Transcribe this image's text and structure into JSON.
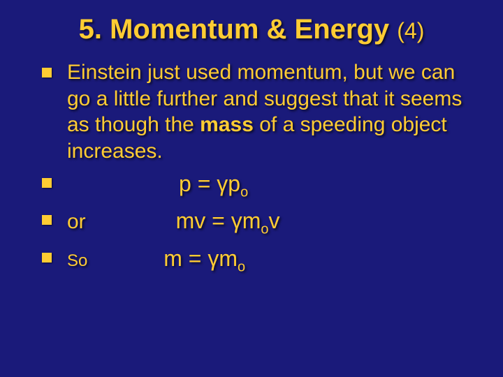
{
  "colors": {
    "background": "#1a1a7a",
    "text": "#ffcc33",
    "bullet": "#ffcc33"
  },
  "typography": {
    "title_fontsize": 40,
    "body_fontsize": 30,
    "equation_fontsize": 32,
    "subscript_fontsize": 20,
    "font_family": "Arial"
  },
  "title": {
    "main": "5. Momentum & Energy",
    "suffix": "(4)"
  },
  "bullets": [
    {
      "type": "text",
      "parts": {
        "a": "Einstein just used momentum, but we can go a little further and suggest that it seems as though the ",
        "b": "mass",
        "c": " of a speeding object increases."
      }
    },
    {
      "type": "equation",
      "prefix": "",
      "eq": {
        "lhs": "p = γp",
        "sub": "o",
        "rhs": ""
      }
    },
    {
      "type": "equation",
      "prefix": "or",
      "eq": {
        "lhs": "mv = γm",
        "sub": "o",
        "rhs": "v"
      }
    },
    {
      "type": "equation",
      "prefix": "So",
      "eq": {
        "lhs": "m = γm",
        "sub": "o",
        "rhs": ""
      }
    }
  ]
}
